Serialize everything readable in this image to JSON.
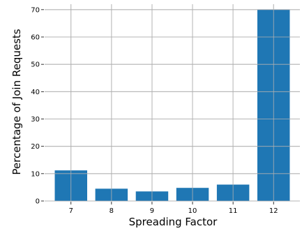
{
  "chart_data": {
    "type": "bar",
    "categories": [
      "7",
      "8",
      "9",
      "10",
      "11",
      "12"
    ],
    "values": [
      11.2,
      4.5,
      3.5,
      4.8,
      6.0,
      70.0
    ],
    "xlabel": "Spreading Factor",
    "ylabel": "Percentage of Join Requests",
    "ylim": [
      0,
      72
    ],
    "yticks": [
      0,
      10,
      20,
      30,
      40,
      50,
      60,
      70
    ],
    "grid": true,
    "bar_color": "#1f77b4"
  }
}
